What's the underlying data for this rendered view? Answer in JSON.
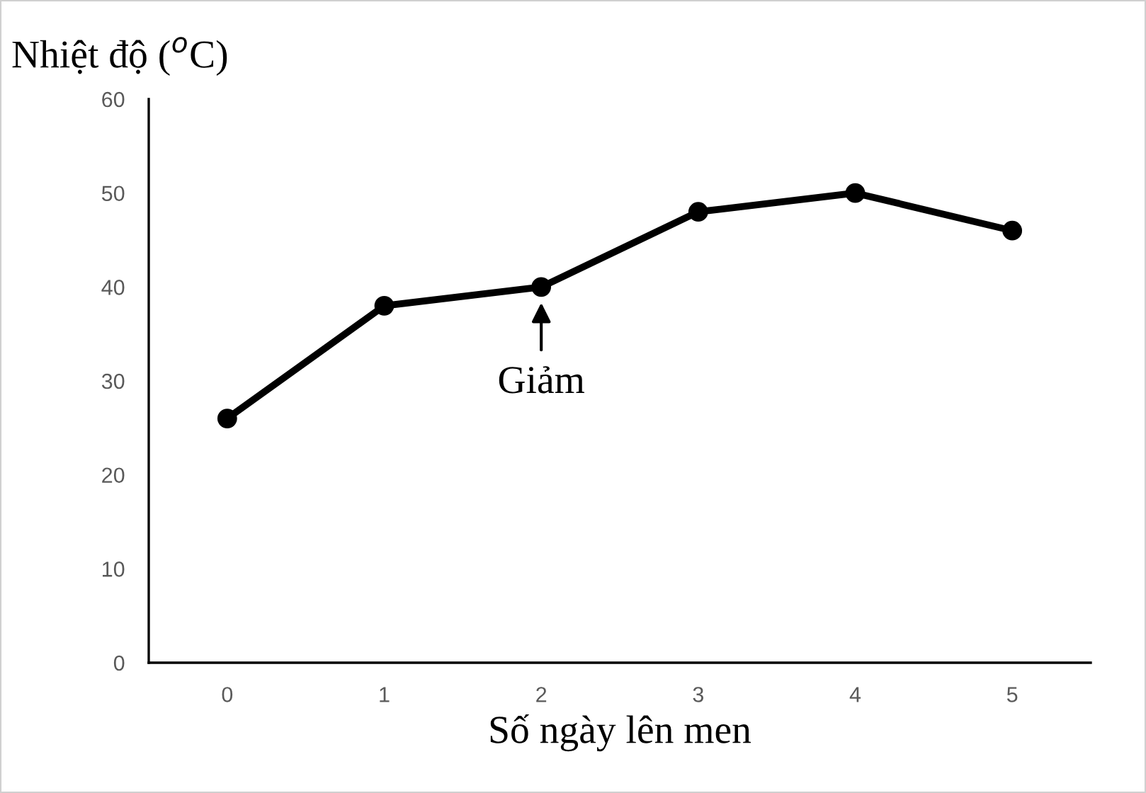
{
  "chart_data": {
    "type": "line",
    "title": "Nhiệt độ ($^{o}$C)",
    "xlabel": "Số ngày lên men",
    "categories": [
      "0",
      "1",
      "2",
      "3",
      "4",
      "5"
    ],
    "series": [
      {
        "color": "#000000",
        "values": [
          26,
          38,
          40,
          48,
          50,
          46
        ]
      }
    ],
    "ylim": [
      0,
      60
    ],
    "yticks": [
      0,
      10,
      20,
      30,
      40,
      50,
      60
    ],
    "grid": false,
    "legend": false,
    "marker": "circle",
    "line_style": "solid",
    "annotations": [
      {
        "text": "Giảm",
        "x": "2",
        "y": 40
      }
    ]
  }
}
